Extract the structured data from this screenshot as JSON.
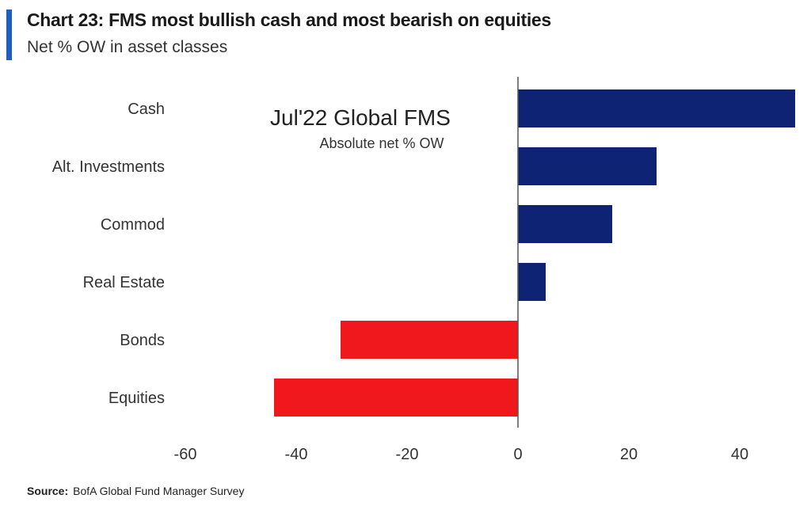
{
  "title": "Chart 23: FMS most bullish cash and most bearish on equities",
  "subtitle": "Net % OW in asset classes",
  "source": {
    "label": "Source:",
    "text": "BofA Global Fund Manager Survey"
  },
  "colors": {
    "accent": "#1f5fbf",
    "positive": "#0e2374",
    "negative": "#f0181d"
  },
  "chart_data": {
    "type": "bar",
    "orientation": "horizontal",
    "categories": [
      "Cash",
      "Alt. Investments",
      "Commod",
      "Real Estate",
      "Bonds",
      "Equities"
    ],
    "values": [
      50,
      25,
      17,
      5,
      -32,
      -44
    ],
    "annotation": {
      "title": "Jul'22 Global FMS",
      "subtitle": "Absolute net % OW"
    },
    "xlim": [
      -60,
      50
    ],
    "xticks": [
      -60,
      -40,
      -20,
      0,
      20,
      40
    ],
    "grid": false,
    "legend": "none"
  }
}
